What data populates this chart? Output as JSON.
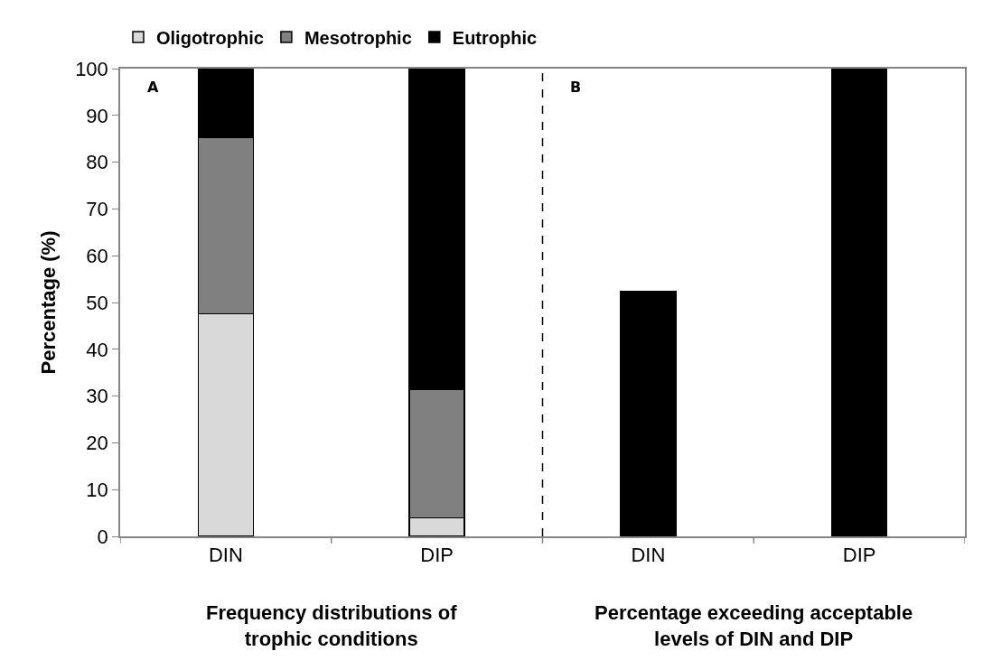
{
  "chart_data": {
    "type": "bar",
    "stacked": true,
    "ylabel": "Percentage (%)",
    "categories": [
      "DIN",
      "DIP",
      "DIN",
      "DIP"
    ],
    "series": [
      {
        "name": "Oligotrophic",
        "color": "#d9d9d9",
        "values": [
          47.6,
          4,
          null,
          null
        ]
      },
      {
        "name": "Mesotrophic",
        "color": "#808080",
        "values": [
          37.7,
          27.5,
          null,
          null
        ]
      },
      {
        "name": "Eutrophic",
        "color": "#000000",
        "values": [
          14.7,
          68.5,
          52.3,
          100
        ]
      }
    ],
    "ylim": [
      0,
      100
    ],
    "yticks": [
      0,
      10,
      20,
      30,
      40,
      50,
      60,
      70,
      80,
      90,
      100
    ],
    "annotations": [
      "A",
      "B",
      "Frequency distributions of\ntrophic conditions",
      "Percentage exceeding acceptable\nlevels of DIN and DIP"
    ],
    "legend": "top left"
  }
}
